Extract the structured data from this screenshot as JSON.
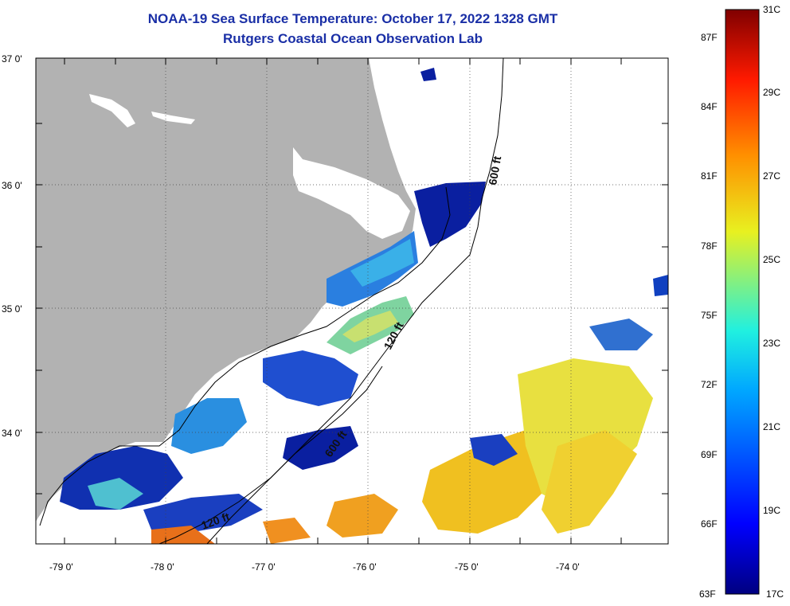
{
  "header": {
    "title": "NOAA-19 Sea Surface Temperature:  October 17, 2022 1328 GMT",
    "subtitle": "Rutgers Coastal Ocean Observation Lab"
  },
  "map": {
    "lat_labels": [
      "37 0'",
      "36 0'",
      "35 0'",
      "34 0'"
    ],
    "lon_labels": [
      "-79 0'",
      "-78 0'",
      "-77 0'",
      "-76 0'",
      "-75 0'",
      "-74 0'"
    ],
    "depth_labels": [
      "600 ft",
      "120 ft",
      "600 ft",
      "120 ft"
    ],
    "colors": {
      "land": "#b2b2b2",
      "cloud": "#ffffff",
      "cold": "#0a1fa0",
      "mid": "#2aa6e8",
      "warm": "#f0c020",
      "hot": "#e8701a"
    }
  },
  "colorbar": {
    "fahrenheit": [
      "87F",
      "84F",
      "81F",
      "78F",
      "75F",
      "72F",
      "69F",
      "66F",
      "63F"
    ],
    "celsius": [
      "31C",
      "29C",
      "27C",
      "25C",
      "23C",
      "21C",
      "19C",
      "17C"
    ]
  }
}
